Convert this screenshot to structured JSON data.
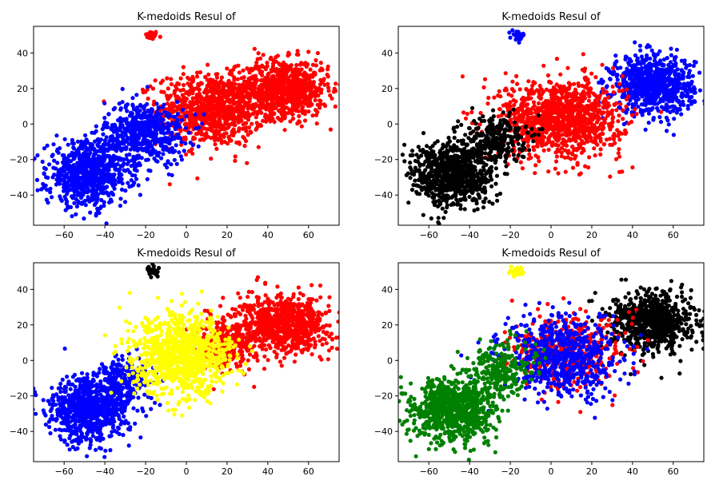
{
  "chart_data": [
    {
      "type": "scatter",
      "title": "K-medoids Resul of",
      "xlim": [
        -75,
        75
      ],
      "ylim": [
        -57,
        55
      ],
      "xticks": [
        -60,
        -40,
        -20,
        0,
        20,
        40,
        60
      ],
      "yticks": [
        -40,
        -20,
        0,
        20,
        40
      ],
      "xtick_labels": [
        "−60",
        "−40",
        "−20",
        "0",
        "20",
        "40",
        "60"
      ],
      "ytick_labels": [
        "−40",
        "−20",
        "0",
        "20",
        "40"
      ],
      "grid": false,
      "clusters": [
        {
          "color": "#ff0000",
          "center": [
            -17,
            50
          ],
          "spread": [
            1.5,
            1.2
          ],
          "count": 40
        },
        {
          "color": "#ff0000",
          "center": [
            12,
            8
          ],
          "spread": [
            13,
            10
          ],
          "count": 900
        },
        {
          "color": "#ff0000",
          "center": [
            48,
            20
          ],
          "spread": [
            11,
            8
          ],
          "count": 800
        },
        {
          "color": "#0000ff",
          "center": [
            -20,
            -5
          ],
          "spread": [
            10,
            9
          ],
          "count": 550
        },
        {
          "color": "#0000ff",
          "center": [
            -48,
            -28
          ],
          "spread": [
            10,
            9
          ],
          "count": 800
        }
      ]
    },
    {
      "type": "scatter",
      "title": "K-medoids Resul of",
      "xlim": [
        -75,
        75
      ],
      "ylim": [
        -57,
        55
      ],
      "xticks": [
        -60,
        -40,
        -20,
        0,
        20,
        40,
        60
      ],
      "yticks": [
        -40,
        -20,
        0,
        20,
        40
      ],
      "xtick_labels": [
        "−60",
        "−40",
        "−20",
        "0",
        "20",
        "40",
        "60"
      ],
      "ytick_labels": [
        "−40",
        "−20",
        "0",
        "20",
        "40"
      ],
      "grid": false,
      "clusters": [
        {
          "color": "#0000ff",
          "center": [
            -16,
            50
          ],
          "spread": [
            1.5,
            1.2
          ],
          "count": 40
        },
        {
          "color": "#0000ff",
          "center": [
            50,
            22
          ],
          "spread": [
            10,
            8
          ],
          "count": 800
        },
        {
          "color": "#ff0000",
          "center": [
            5,
            3
          ],
          "spread": [
            15,
            11
          ],
          "count": 1100
        },
        {
          "color": "#000000",
          "center": [
            -28,
            -8
          ],
          "spread": [
            8,
            7
          ],
          "count": 250
        },
        {
          "color": "#000000",
          "center": [
            -48,
            -28
          ],
          "spread": [
            10,
            9
          ],
          "count": 850
        }
      ]
    },
    {
      "type": "scatter",
      "title": "K-medoids Resul of",
      "xlim": [
        -75,
        75
      ],
      "ylim": [
        -57,
        55
      ],
      "xticks": [
        -60,
        -40,
        -20,
        0,
        20,
        40,
        60
      ],
      "yticks": [
        -40,
        -20,
        0,
        20,
        40
      ],
      "xtick_labels": [
        "−60",
        "−40",
        "−20",
        "0",
        "20",
        "40",
        "60"
      ],
      "ytick_labels": [
        "−40",
        "−20",
        "0",
        "20",
        "40"
      ],
      "grid": false,
      "clusters": [
        {
          "color": "#000000",
          "center": [
            -16,
            50
          ],
          "spread": [
            1.5,
            1.2
          ],
          "count": 40
        },
        {
          "color": "#ff0000",
          "center": [
            48,
            20
          ],
          "spread": [
            11,
            8
          ],
          "count": 800
        },
        {
          "color": "#ff0000",
          "center": [
            20,
            10
          ],
          "spread": [
            7,
            8
          ],
          "count": 300
        },
        {
          "color": "#0000ff",
          "center": [
            -30,
            -10
          ],
          "spread": [
            7,
            6
          ],
          "count": 200
        },
        {
          "color": "#0000ff",
          "center": [
            -48,
            -28
          ],
          "spread": [
            10,
            9
          ],
          "count": 800
        },
        {
          "color": "#ffff00",
          "center": [
            -2,
            3
          ],
          "spread": [
            12,
            11
          ],
          "count": 1000
        }
      ]
    },
    {
      "type": "scatter",
      "title": "K-medoids Resul of",
      "xlim": [
        -75,
        75
      ],
      "ylim": [
        -57,
        55
      ],
      "xticks": [
        -60,
        -40,
        -20,
        0,
        20,
        40,
        60
      ],
      "yticks": [
        -40,
        -20,
        0,
        20,
        40
      ],
      "xtick_labels": [
        "−60",
        "−40",
        "−20",
        "0",
        "20",
        "40",
        "60"
      ],
      "ytick_labels": [
        "−40",
        "−20",
        "0",
        "20",
        "40"
      ],
      "grid": false,
      "clusters": [
        {
          "color": "#ffff00",
          "center": [
            -16,
            50
          ],
          "spread": [
            1.5,
            1.2
          ],
          "count": 40
        },
        {
          "color": "#000000",
          "center": [
            50,
            22
          ],
          "spread": [
            10,
            8
          ],
          "count": 800
        },
        {
          "color": "#ff0000",
          "center": [
            8,
            5
          ],
          "spread": [
            14,
            10
          ],
          "count": 450
        },
        {
          "color": "#0000ff",
          "center": [
            5,
            2
          ],
          "spread": [
            14,
            11
          ],
          "count": 650
        },
        {
          "color": "#008000",
          "center": [
            -25,
            -5
          ],
          "spread": [
            8,
            8
          ],
          "count": 250
        },
        {
          "color": "#008000",
          "center": [
            -48,
            -28
          ],
          "spread": [
            10,
            9
          ],
          "count": 850
        }
      ]
    }
  ]
}
